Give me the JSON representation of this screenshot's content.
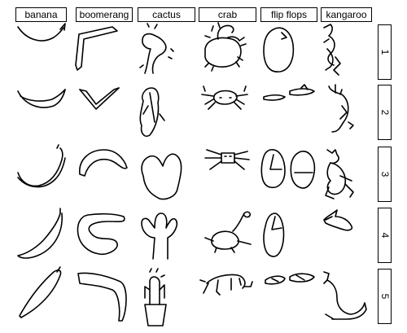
{
  "categories": [
    "banana",
    "boomerang",
    "cactus",
    "crab",
    "flip flops",
    "kangaroo"
  ],
  "rows": [
    "1",
    "2",
    "3",
    "4",
    "5"
  ]
}
